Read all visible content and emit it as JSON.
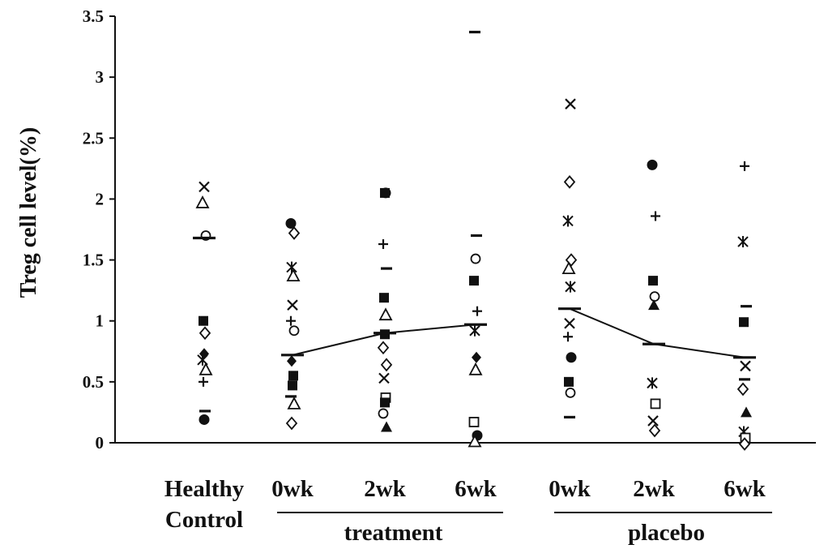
{
  "chart_data": {
    "type": "scatter",
    "title": "",
    "ylabel": "Treg cell level(%)",
    "xlabel": "",
    "ylim": [
      0,
      3.5
    ],
    "y_ticks": [
      "0",
      "0.5",
      "1",
      "1.5",
      "2",
      "2.5",
      "3",
      "3.5"
    ],
    "grid": false,
    "legend": "none",
    "categories": [
      {
        "id": "healthy",
        "label_lines": [
          "Healthy",
          "Control"
        ]
      },
      {
        "id": "t0",
        "label_lines": [
          "0wk"
        ]
      },
      {
        "id": "t2",
        "label_lines": [
          "2wk"
        ]
      },
      {
        "id": "t6",
        "label_lines": [
          "6wk"
        ]
      },
      {
        "id": "p0",
        "label_lines": [
          "0wk"
        ]
      },
      {
        "id": "p2",
        "label_lines": [
          "2wk"
        ]
      },
      {
        "id": "p6",
        "label_lines": [
          "6wk"
        ]
      }
    ],
    "groups": [
      {
        "label": "treatment",
        "categories": [
          "t0",
          "t2",
          "t6"
        ]
      },
      {
        "label": "placebo",
        "categories": [
          "p0",
          "p2",
          "p6"
        ]
      }
    ],
    "means": [
      {
        "category": "healthy",
        "y": 1.68
      },
      {
        "category": "t0",
        "y": 0.72
      },
      {
        "category": "t2",
        "y": 0.9
      },
      {
        "category": "t6",
        "y": 0.97
      },
      {
        "category": "p0",
        "y": 1.1
      },
      {
        "category": "p2",
        "y": 0.81
      },
      {
        "category": "p6",
        "y": 0.7
      }
    ],
    "mean_lines": [
      [
        "t0",
        "t2",
        "t6"
      ],
      [
        "p0",
        "p2",
        "p6"
      ]
    ],
    "points": [
      {
        "category": "healthy",
        "marker": "x",
        "y": 2.1
      },
      {
        "category": "healthy",
        "marker": "triangle-open",
        "y": 1.97
      },
      {
        "category": "healthy",
        "marker": "circle-open",
        "y": 1.7
      },
      {
        "category": "healthy",
        "marker": "square-filled",
        "y": 1.0
      },
      {
        "category": "healthy",
        "marker": "diamond-open",
        "y": 0.9
      },
      {
        "category": "healthy",
        "marker": "diamond-filled",
        "y": 0.73
      },
      {
        "category": "healthy",
        "marker": "asterisk",
        "y": 0.68
      },
      {
        "category": "healthy",
        "marker": "triangle-open",
        "y": 0.6
      },
      {
        "category": "healthy",
        "marker": "plus",
        "y": 0.5
      },
      {
        "category": "healthy",
        "marker": "dash",
        "y": 0.26
      },
      {
        "category": "healthy",
        "marker": "circle-filled",
        "y": 0.19
      },
      {
        "category": "t0",
        "marker": "circle-filled",
        "y": 1.8
      },
      {
        "category": "t0",
        "marker": "diamond-open",
        "y": 1.72
      },
      {
        "category": "t0",
        "marker": "asterisk",
        "y": 1.44
      },
      {
        "category": "t0",
        "marker": "triangle-open",
        "y": 1.37
      },
      {
        "category": "t0",
        "marker": "x",
        "y": 1.13
      },
      {
        "category": "t0",
        "marker": "plus",
        "y": 1.0
      },
      {
        "category": "t0",
        "marker": "circle-open",
        "y": 0.92
      },
      {
        "category": "t0",
        "marker": "diamond-filled",
        "y": 0.67
      },
      {
        "category": "t0",
        "marker": "square-filled",
        "y": 0.55
      },
      {
        "category": "t0",
        "marker": "square-filled",
        "y": 0.47
      },
      {
        "category": "t0",
        "marker": "dash",
        "y": 0.38
      },
      {
        "category": "t0",
        "marker": "triangle-open",
        "y": 0.32
      },
      {
        "category": "t0",
        "marker": "diamond-open",
        "y": 0.16
      },
      {
        "category": "t2",
        "marker": "circle-filled",
        "y": 2.05
      },
      {
        "category": "t2",
        "marker": "square-filled",
        "y": 2.05
      },
      {
        "category": "t2",
        "marker": "plus",
        "y": 1.63
      },
      {
        "category": "t2",
        "marker": "dash",
        "y": 1.43
      },
      {
        "category": "t2",
        "marker": "square-filled",
        "y": 1.19
      },
      {
        "category": "t2",
        "marker": "triangle-open",
        "y": 1.05
      },
      {
        "category": "t2",
        "marker": "square-filled",
        "y": 0.89
      },
      {
        "category": "t2",
        "marker": "diamond-open",
        "y": 0.78
      },
      {
        "category": "t2",
        "marker": "diamond-open",
        "y": 0.64
      },
      {
        "category": "t2",
        "marker": "x",
        "y": 0.53
      },
      {
        "category": "t2",
        "marker": "square-open",
        "y": 0.37
      },
      {
        "category": "t2",
        "marker": "square-filled",
        "y": 0.33
      },
      {
        "category": "t2",
        "marker": "circle-open",
        "y": 0.24
      },
      {
        "category": "t2",
        "marker": "triangle-filled",
        "y": 0.13
      },
      {
        "category": "t6",
        "marker": "dash",
        "y": 3.37
      },
      {
        "category": "t6",
        "marker": "dash",
        "y": 1.7
      },
      {
        "category": "t6",
        "marker": "circle-open",
        "y": 1.51
      },
      {
        "category": "t6",
        "marker": "square-filled",
        "y": 1.33
      },
      {
        "category": "t6",
        "marker": "plus",
        "y": 1.08
      },
      {
        "category": "t6",
        "marker": "asterisk",
        "y": 0.92
      },
      {
        "category": "t6",
        "marker": "diamond-filled",
        "y": 0.7
      },
      {
        "category": "t6",
        "marker": "triangle-open",
        "y": 0.6
      },
      {
        "category": "t6",
        "marker": "square-open",
        "y": 0.17
      },
      {
        "category": "t6",
        "marker": "circle-filled",
        "y": 0.06
      },
      {
        "category": "t6",
        "marker": "triangle-open",
        "y": 0.01
      },
      {
        "category": "p0",
        "marker": "x",
        "y": 2.78
      },
      {
        "category": "p0",
        "marker": "diamond-open",
        "y": 2.14
      },
      {
        "category": "p0",
        "marker": "asterisk",
        "y": 1.82
      },
      {
        "category": "p0",
        "marker": "diamond-open",
        "y": 1.5
      },
      {
        "category": "p0",
        "marker": "triangle-open",
        "y": 1.43
      },
      {
        "category": "p0",
        "marker": "asterisk",
        "y": 1.28
      },
      {
        "category": "p0",
        "marker": "x",
        "y": 0.98
      },
      {
        "category": "p0",
        "marker": "plus",
        "y": 0.87
      },
      {
        "category": "p0",
        "marker": "circle-filled",
        "y": 0.7
      },
      {
        "category": "p0",
        "marker": "square-filled",
        "y": 0.5
      },
      {
        "category": "p0",
        "marker": "circle-open",
        "y": 0.41
      },
      {
        "category": "p0",
        "marker": "dash",
        "y": 0.21
      },
      {
        "category": "p2",
        "marker": "circle-filled",
        "y": 2.28
      },
      {
        "category": "p2",
        "marker": "plus",
        "y": 1.86
      },
      {
        "category": "p2",
        "marker": "square-filled",
        "y": 1.33
      },
      {
        "category": "p2",
        "marker": "circle-open",
        "y": 1.2
      },
      {
        "category": "p2",
        "marker": "triangle-filled",
        "y": 1.13
      },
      {
        "category": "p2",
        "marker": "asterisk",
        "y": 0.49
      },
      {
        "category": "p2",
        "marker": "square-open",
        "y": 0.32
      },
      {
        "category": "p2",
        "marker": "x",
        "y": 0.18
      },
      {
        "category": "p2",
        "marker": "diamond-open",
        "y": 0.1
      },
      {
        "category": "p6",
        "marker": "plus",
        "y": 2.27
      },
      {
        "category": "p6",
        "marker": "asterisk",
        "y": 1.65
      },
      {
        "category": "p6",
        "marker": "dash",
        "y": 1.12
      },
      {
        "category": "p6",
        "marker": "square-filled",
        "y": 0.99
      },
      {
        "category": "p6",
        "marker": "x",
        "y": 0.63
      },
      {
        "category": "p6",
        "marker": "dash",
        "y": 0.52
      },
      {
        "category": "p6",
        "marker": "diamond-open",
        "y": 0.44
      },
      {
        "category": "p6",
        "marker": "triangle-filled",
        "y": 0.25
      },
      {
        "category": "p6",
        "marker": "asterisk",
        "y": 0.09
      },
      {
        "category": "p6",
        "marker": "square-open",
        "y": 0.04
      },
      {
        "category": "p6",
        "marker": "diamond-open",
        "y": -0.01
      }
    ]
  }
}
